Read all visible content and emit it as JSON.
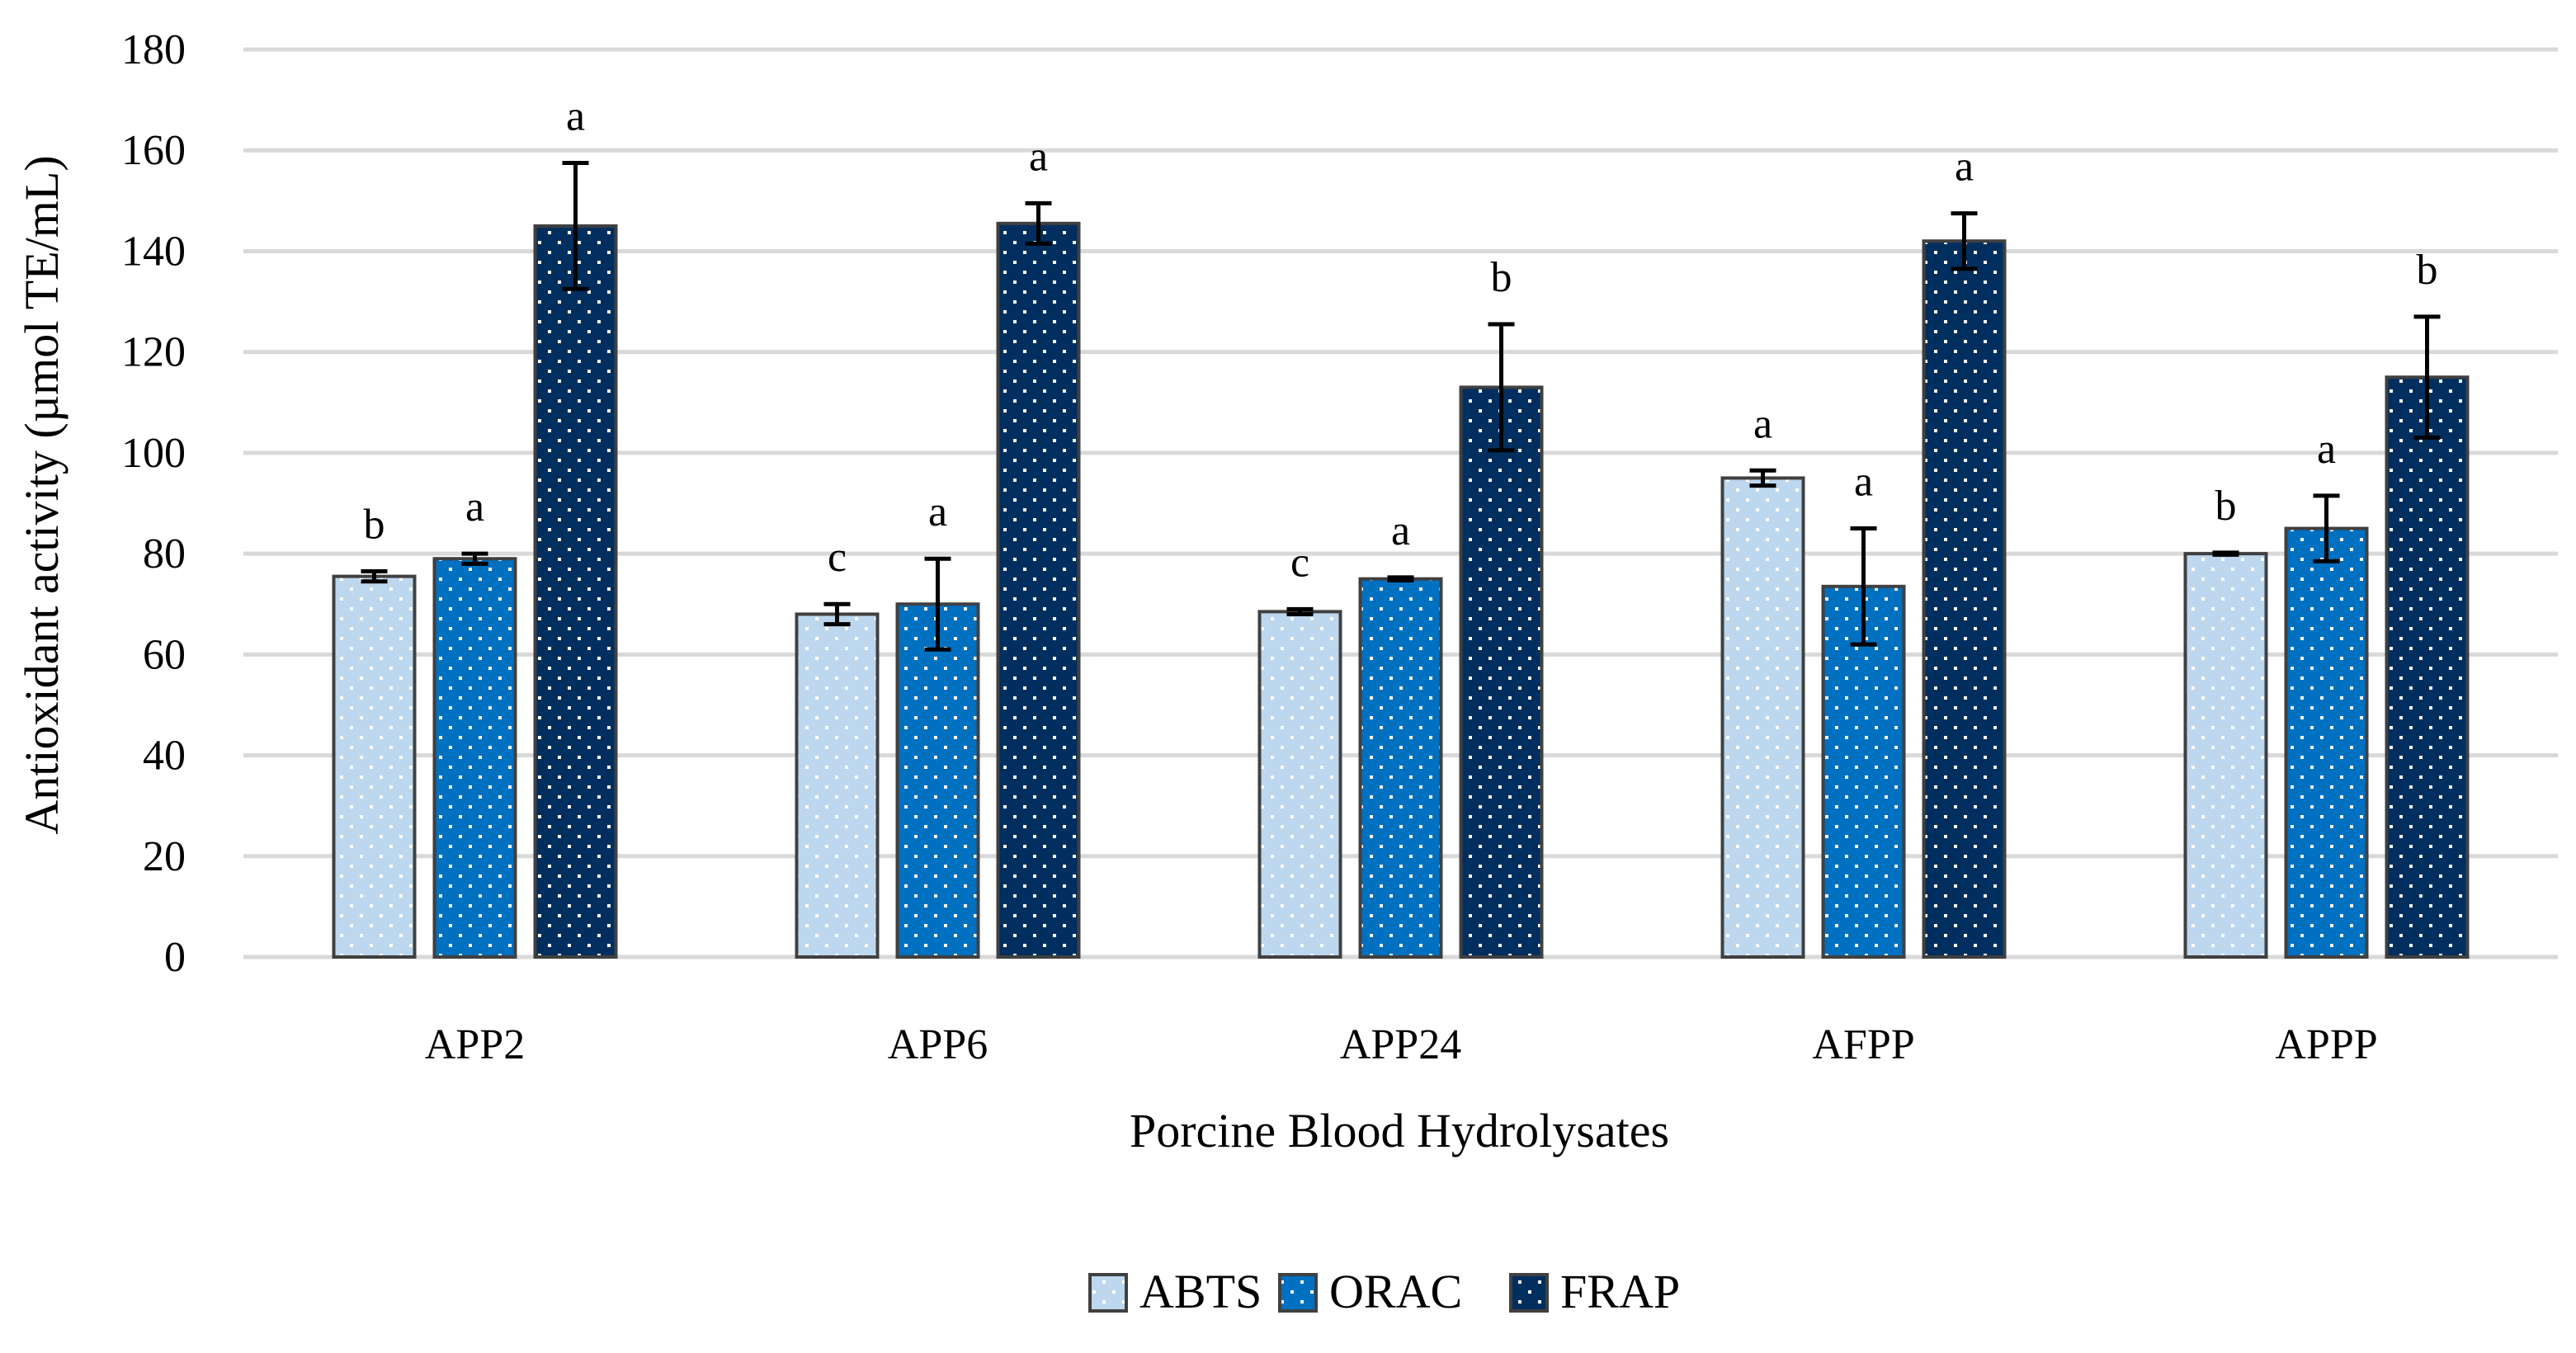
{
  "chart_data": {
    "type": "bar",
    "title": "",
    "xlabel": "Porcine Blood Hydrolysates",
    "ylabel": "Antioxidant activity (µmol TE/mL)",
    "ylim": [
      0,
      180
    ],
    "yticks": [
      0,
      20,
      40,
      60,
      80,
      100,
      120,
      140,
      160,
      180
    ],
    "grid": true,
    "legend_position": "bottom",
    "categories": [
      "APP2",
      "APP6",
      "APP24",
      "AFPP",
      "APPP"
    ],
    "series": [
      {
        "name": "ABTS",
        "color": "#BDD7EE",
        "dot_color": "#ffffff",
        "values": [
          75.5,
          68,
          68.5,
          95,
          80
        ],
        "errors": [
          1,
          2,
          0.5,
          1.5,
          0.2
        ],
        "letters": [
          "b",
          "c",
          "c",
          "a",
          "b"
        ]
      },
      {
        "name": "ORAC",
        "color": "#0070C0",
        "dot_color": "#ffffff",
        "values": [
          79,
          70,
          75,
          73.5,
          85
        ],
        "errors": [
          1,
          9,
          0.3,
          11.5,
          6.5
        ],
        "letters": [
          "a",
          "a",
          "a",
          "a",
          "a"
        ]
      },
      {
        "name": "FRAP",
        "color": "#002F5F",
        "dot_color": "#ffffff",
        "values": [
          145,
          145.5,
          113,
          142,
          115
        ],
        "errors": [
          12.5,
          4,
          12.5,
          5.5,
          12
        ],
        "letters": [
          "a",
          "a",
          "b",
          "a",
          "b"
        ]
      }
    ]
  }
}
